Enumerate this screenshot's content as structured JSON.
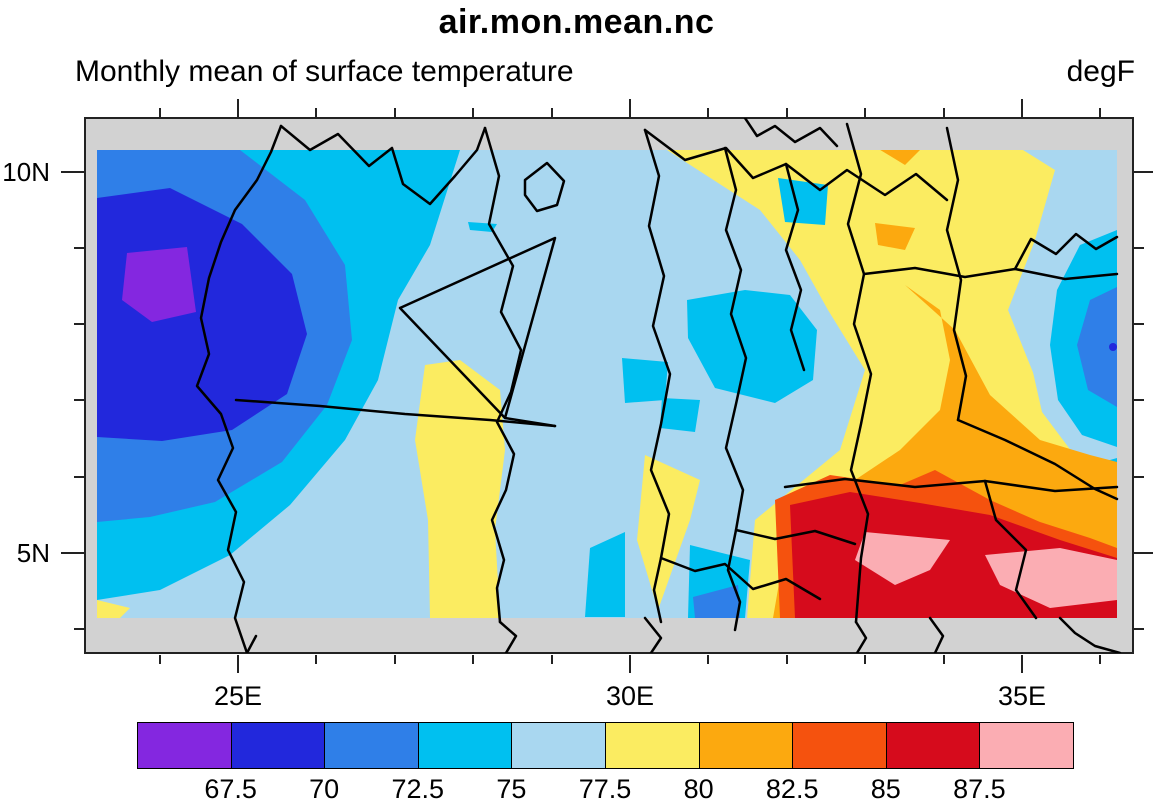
{
  "header": {
    "title": "air.mon.mean.nc",
    "subtitle_left": "Monthly mean of surface temperature",
    "units": "degF"
  },
  "axes": {
    "y_ticks": [
      {
        "label": "10N"
      },
      {
        "label": "5N"
      }
    ],
    "x_ticks": [
      {
        "label": "25E"
      },
      {
        "label": "30E"
      },
      {
        "label": "35E"
      }
    ]
  },
  "colorbar": {
    "colors": [
      "#8427E0",
      "#2228DC",
      "#2F7FE8",
      "#00C0F0",
      "#A9D7F0",
      "#FBEC61",
      "#FCA90F",
      "#F5520E",
      "#D60B1C",
      "#FBADB3"
    ],
    "tick_labels": [
      "67.5",
      "70",
      "72.5",
      "75",
      "77.5",
      "80",
      "82.5",
      "85",
      "87.5"
    ]
  },
  "map": {
    "background_fill": "#D2D2D2",
    "boundary_color": "#000000"
  },
  "chart_data": {
    "type": "heatmap",
    "title": "air.mon.mean.nc",
    "subtitle": "Monthly mean of surface temperature",
    "units": "degF",
    "projection": "cylindrical equidistant lat/lon map (South Sudan region)",
    "lon_range_deg_e": [
      23.2,
      36.3
    ],
    "lat_range_deg_n": [
      4.1,
      10.3
    ],
    "x_tick_labels": [
      "25E",
      "30E",
      "35E"
    ],
    "y_tick_labels": [
      "10N",
      "5N"
    ],
    "minor_tick_interval_deg": 1,
    "contour_levels_degF": [
      67.5,
      70,
      72.5,
      75,
      77.5,
      80,
      82.5,
      85,
      87.5
    ],
    "palette_hex": [
      "#8427E0",
      "#2228DC",
      "#2F7FE8",
      "#00C0F0",
      "#A9D7F0",
      "#FBEC61",
      "#FCA90F",
      "#F5520E",
      "#D60B1C",
      "#FBADB3"
    ],
    "legend_position": "horizontal labelbar below map",
    "grid": false,
    "overlay": "black admin/country boundaries over grey map background; grey band where no data",
    "features": [
      {
        "region": "northwest (~24-26E, 7-9N)",
        "value_degF": "minimum < 67.5 (purple core ~24.5E 8.3N inside dark-blue 67.5-70 pool)"
      },
      {
        "region": "west lobe along left edge",
        "value_degF": "70-75 (blue/cyan rings around the cold pool)"
      },
      {
        "region": "center (~27-31E, 5-9N)",
        "value_degF": "75-77.5 pale blue with scattered 72.5-75 cyan patches"
      },
      {
        "region": "center-south vertical band (~28.5E, 4.5-7N)",
        "value_degF": "77.5-80 yellow band"
      },
      {
        "region": "northeast (~31.5-35E, 9-10.3N)",
        "value_degF": "77.5-82.5 yellow with small orange (80-82.5) spots"
      },
      {
        "region": "east edge blob (~36E, 7-7.7N)",
        "value_degF": "70-75 cool blob touching right edge"
      },
      {
        "region": "bottom center (~31.5E, 4.2N)",
        "value_degF": "70-75 small cool wedge with blue core"
      },
      {
        "region": "southeast (~32-36.3E, 4-6N)",
        "value_degF": "maximum 82.5 to >87.5; red field with pink cores >87.5"
      }
    ]
  }
}
